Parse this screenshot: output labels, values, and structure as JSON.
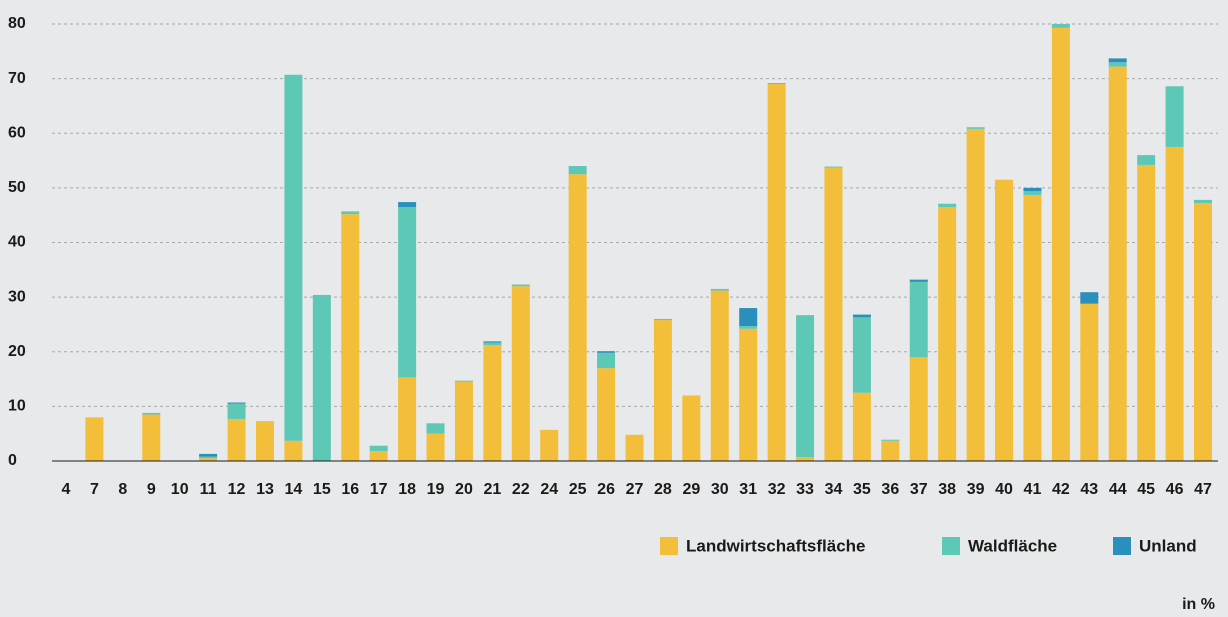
{
  "chart_data": {
    "type": "stacked_bar",
    "categories": [
      "4",
      "7",
      "8",
      "9",
      "10",
      "11",
      "12",
      "13",
      "14",
      "15",
      "16",
      "17",
      "18",
      "19",
      "20",
      "21",
      "22",
      "24",
      "25",
      "26",
      "27",
      "28",
      "29",
      "30",
      "31",
      "32",
      "33",
      "34",
      "35",
      "36",
      "37",
      "38",
      "39",
      "40",
      "41",
      "42",
      "43",
      "44",
      "45",
      "46",
      "47"
    ],
    "series": [
      {
        "name": "Landwirtschaftsfläche",
        "color": "#f3bf3a",
        "values": [
          0,
          8,
          0,
          8.5,
          0,
          0.5,
          7.7,
          7.3,
          3.7,
          0,
          45.2,
          1.8,
          15.3,
          5,
          14.5,
          21.2,
          32,
          5.7,
          52.5,
          17,
          4.8,
          25.8,
          12,
          31.2,
          24.2,
          69,
          0.7,
          53.7,
          12.5,
          3.7,
          19,
          46.5,
          60.8,
          51.5,
          48.7,
          79.3,
          28.8,
          72.2,
          54.2,
          57.5,
          47.2
        ]
      },
      {
        "name": "Waldfläche",
        "color": "#5ec8b6",
        "values": [
          0,
          0,
          0,
          0.3,
          0,
          0.3,
          2.8,
          0,
          67,
          30.4,
          0.5,
          1,
          31.2,
          1.9,
          0.2,
          0.5,
          0.3,
          0,
          1.5,
          2.8,
          0,
          0.2,
          0,
          0.3,
          0.5,
          0.2,
          26,
          0.2,
          13.8,
          0.2,
          13.8,
          0.6,
          0.3,
          0,
          0.7,
          0.7,
          0,
          0.8,
          1.8,
          11.1,
          0.6
        ]
      },
      {
        "name": "Unland",
        "color": "#2a8fba",
        "values": [
          0,
          0,
          0,
          0,
          0,
          0.5,
          0.2,
          0,
          0,
          0,
          0,
          0,
          0.9,
          0,
          0,
          0.2,
          0,
          0,
          0,
          0.3,
          0,
          0,
          0,
          0,
          3.3,
          0,
          0,
          0,
          0.5,
          0,
          0.4,
          0,
          0,
          0,
          0.6,
          0,
          2.1,
          0.7,
          0,
          0,
          0
        ]
      }
    ],
    "ylim": [
      0,
      80
    ],
    "yticks": [
      0,
      10,
      20,
      30,
      40,
      50,
      60,
      70,
      80
    ],
    "grid": true,
    "unit_label": "in %"
  }
}
